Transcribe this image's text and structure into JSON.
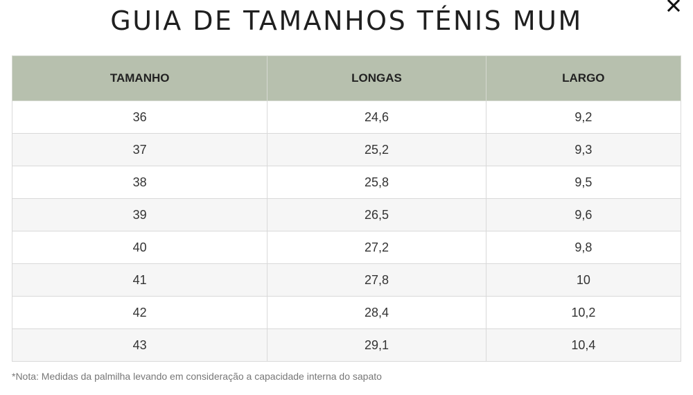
{
  "modal": {
    "title": "GUIA DE TAMANHOS TÉNIS MUM",
    "close_icon": "close-icon"
  },
  "table": {
    "headers": [
      "TAMANHO",
      "LONGAS",
      "LARGO"
    ],
    "rows": [
      [
        "36",
        "24,6",
        "9,2"
      ],
      [
        "37",
        "25,2",
        "9,3"
      ],
      [
        "38",
        "25,8",
        "9,5"
      ],
      [
        "39",
        "26,5",
        "9,6"
      ],
      [
        "40",
        "27,2",
        "9,8"
      ],
      [
        "41",
        "27,8",
        "10"
      ],
      [
        "42",
        "28,4",
        "10,2"
      ],
      [
        "43",
        "29,1",
        "10,4"
      ]
    ],
    "header_color": "#b7c0ae"
  },
  "note": "*Nota: Medidas da palmilha levando em consideração a capacidade interna do sapato"
}
